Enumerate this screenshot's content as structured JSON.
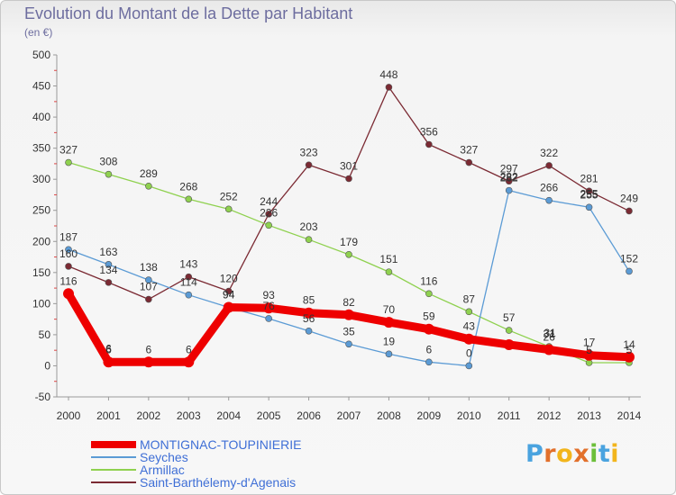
{
  "header": {
    "title": "Evolution du Montant de la Dette par Habitant",
    "subtitle": "(en €)"
  },
  "brand": {
    "letters": [
      "P",
      "r",
      "o",
      "x",
      "i",
      "t",
      "i"
    ],
    "colors": [
      "#4aa3df",
      "#e2702b",
      "#f2b51c",
      "#e2702b",
      "#6cbf3a",
      "#4aa3df",
      "#f2b51c"
    ]
  },
  "chart_data": {
    "type": "line",
    "title": "Evolution du Montant de la Dette par Habitant",
    "subtitle": "(en €)",
    "xlabel": "",
    "ylabel": "",
    "x": [
      "2000",
      "2001",
      "2002",
      "2003",
      "2004",
      "2005",
      "2006",
      "2007",
      "2008",
      "2009",
      "2010",
      "2011",
      "2012",
      "2013",
      "2014"
    ],
    "ylim": [
      -50,
      500
    ],
    "yticks": [
      -50,
      0,
      50,
      100,
      150,
      200,
      250,
      300,
      350,
      400,
      450,
      500
    ],
    "grid": false,
    "legend_position": "bottom-left",
    "series": [
      {
        "name": "Saint-Barthélemy-d'Agenais",
        "color": "#7b2a33",
        "values": [
          160,
          134,
          107,
          143,
          120,
          244,
          323,
          301,
          448,
          356,
          327,
          297,
          322,
          281,
          249
        ]
      },
      {
        "name": "Armillac",
        "color": "#8fd14f",
        "values": [
          327,
          308,
          289,
          268,
          252,
          226,
          203,
          179,
          151,
          116,
          87,
          57,
          31,
          5,
          5
        ]
      },
      {
        "name": "Seyches",
        "color": "#5b9bd5",
        "values": [
          187,
          163,
          138,
          114,
          94,
          76,
          56,
          35,
          19,
          6,
          0,
          282,
          266,
          255,
          152
        ]
      },
      {
        "name": "MONTIGNAC-TOUPINIERIE",
        "color": "#ee0000",
        "values": [
          116,
          6,
          6,
          6,
          94,
          93,
          85,
          82,
          70,
          59,
          43,
          34,
          26,
          17,
          14
        ],
        "labels": [
          "116",
          "6",
          "6",
          "6",
          "94",
          "93",
          "85",
          "82",
          "70",
          "59",
          "43",
          "",
          "26",
          "17",
          "14"
        ]
      }
    ],
    "overlapping_labels": [
      {
        "x": "2001",
        "text": "6"
      },
      {
        "x": "2011",
        "text": "282"
      },
      {
        "x": "2012",
        "text": "31"
      },
      {
        "x": "2013",
        "text": "255"
      }
    ]
  }
}
